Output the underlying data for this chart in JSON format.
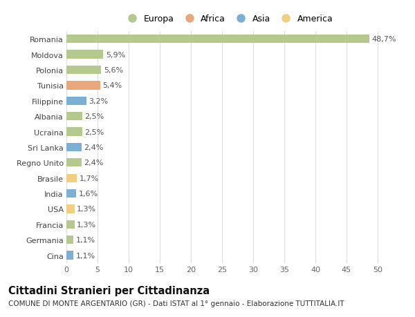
{
  "countries": [
    "Romania",
    "Moldova",
    "Polonia",
    "Tunisia",
    "Filippine",
    "Albania",
    "Ucraina",
    "Sri Lanka",
    "Regno Unito",
    "Brasile",
    "India",
    "USA",
    "Francia",
    "Germania",
    "Cina"
  ],
  "values": [
    48.7,
    5.9,
    5.6,
    5.4,
    3.2,
    2.5,
    2.5,
    2.4,
    2.4,
    1.7,
    1.6,
    1.3,
    1.3,
    1.1,
    1.1
  ],
  "labels": [
    "48,7%",
    "5,9%",
    "5,6%",
    "5,4%",
    "3,2%",
    "2,5%",
    "2,5%",
    "2,4%",
    "2,4%",
    "1,7%",
    "1,6%",
    "1,3%",
    "1,3%",
    "1,1%",
    "1,1%"
  ],
  "continents": [
    "Europa",
    "Europa",
    "Europa",
    "Africa",
    "Asia",
    "Europa",
    "Europa",
    "Asia",
    "Europa",
    "America",
    "Asia",
    "America",
    "Europa",
    "Europa",
    "Asia"
  ],
  "continent_colors": {
    "Europa": "#b5c98e",
    "Africa": "#e8a87c",
    "Asia": "#7bafd4",
    "America": "#f0d080"
  },
  "legend_order": [
    "Europa",
    "Africa",
    "Asia",
    "America"
  ],
  "title": "Cittadini Stranieri per Cittadinanza",
  "subtitle": "COMUNE DI MONTE ARGENTARIO (GR) - Dati ISTAT al 1° gennaio - Elaborazione TUTTITALIA.IT",
  "xlim": [
    0,
    52
  ],
  "xticks": [
    0,
    5,
    10,
    15,
    20,
    25,
    30,
    35,
    40,
    45,
    50
  ],
  "background_color": "#ffffff",
  "grid_color": "#dddddd",
  "bar_height": 0.55,
  "label_fontsize": 8,
  "title_fontsize": 10.5,
  "subtitle_fontsize": 7.5,
  "tick_fontsize": 8,
  "legend_fontsize": 9
}
